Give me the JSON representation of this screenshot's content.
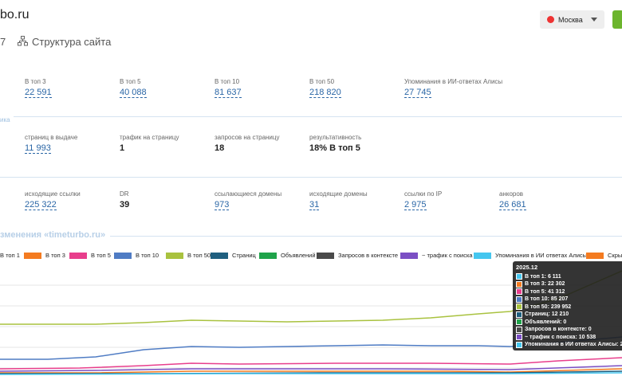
{
  "header": {
    "title": "bo.ru",
    "tab_prefix": "7",
    "tab": "Структура сайта",
    "region": "Москва"
  },
  "stats": [
    [
      {
        "label": "В топ 3",
        "value": "22 591",
        "link": true
      },
      {
        "label": "В топ 5",
        "value": "40 088",
        "link": true
      },
      {
        "label": "В топ 10",
        "value": "81 637",
        "link": true
      },
      {
        "label": "В топ 50",
        "value": "218 820",
        "link": true
      },
      {
        "label": "Упоминания в ИИ-ответах Алисы",
        "value": "27 745",
        "link": true
      }
    ],
    [
      {
        "label": "страниц в выдаче",
        "value": "11 993",
        "link": true
      },
      {
        "label": "трафик на страницу",
        "value": "1",
        "link": false
      },
      {
        "label": "запросов на страницу",
        "value": "18",
        "link": false
      },
      {
        "label": "результативность",
        "value": "18% В топ 5",
        "link": false
      }
    ],
    [
      {
        "label": "исходящие ссылки",
        "value": "225 322",
        "link": true
      },
      {
        "label": "DR",
        "value": "39",
        "link": false
      },
      {
        "label": "ссылающиеся домены",
        "value": "973",
        "link": true
      },
      {
        "label": "исходящие домены",
        "value": "31",
        "link": true
      },
      {
        "label": "ссылки по IP",
        "value": "2 975",
        "link": true
      },
      {
        "label": "анкоров",
        "value": "26 681",
        "link": true
      }
    ]
  ],
  "section_label": "ика",
  "chart": {
    "title": "зменения «timeturbo.ru»",
    "legend": [
      {
        "name": "В топ 1",
        "color": null
      },
      {
        "name": "В топ 3",
        "color": "#f47b20"
      },
      {
        "name": "В топ 5",
        "color": "#e83e8c"
      },
      {
        "name": "В топ 10",
        "color": "#4f7cc4"
      },
      {
        "name": "В топ 50",
        "color": "#a9c23f"
      },
      {
        "name": "Страниц",
        "color": "#1f5f7f"
      },
      {
        "name": "Объявлений",
        "color": "#1fa34a"
      },
      {
        "name": "Запросов в контексте",
        "color": "#4a4a4a"
      },
      {
        "name": "~ трафик с поиска",
        "color": "#7b4fc4"
      },
      {
        "name": "Упоминания в ИИ ответах Алисы",
        "color": "#45c6ef"
      },
      {
        "name": "Скры",
        "color": "#f47b20"
      }
    ],
    "tooltip": {
      "date": "2025.12",
      "rows": [
        {
          "text": "В топ 1: 6 111",
          "color": "#45c6ef"
        },
        {
          "text": "В топ 3: 22 302",
          "color": "#f47b20"
        },
        {
          "text": "В топ 5: 41 312",
          "color": "#e83e8c"
        },
        {
          "text": "В топ 10: 85 207",
          "color": "#4f7cc4"
        },
        {
          "text": "В топ 50: 239 952",
          "color": "#a9c23f"
        },
        {
          "text": "Страниц: 12 210",
          "color": "#1f5f7f"
        },
        {
          "text": "Объявлений: 0",
          "color": "#1fa34a"
        },
        {
          "text": "Запросов в контексте: 0",
          "color": "#4a4a4a"
        },
        {
          "text": "~ трафик с поиска: 10 538",
          "color": "#7b4fc4"
        },
        {
          "text": "Упоминания в ИИ ответах Алисы: 25 1",
          "color": "#45c6ef"
        }
      ]
    }
  }
}
